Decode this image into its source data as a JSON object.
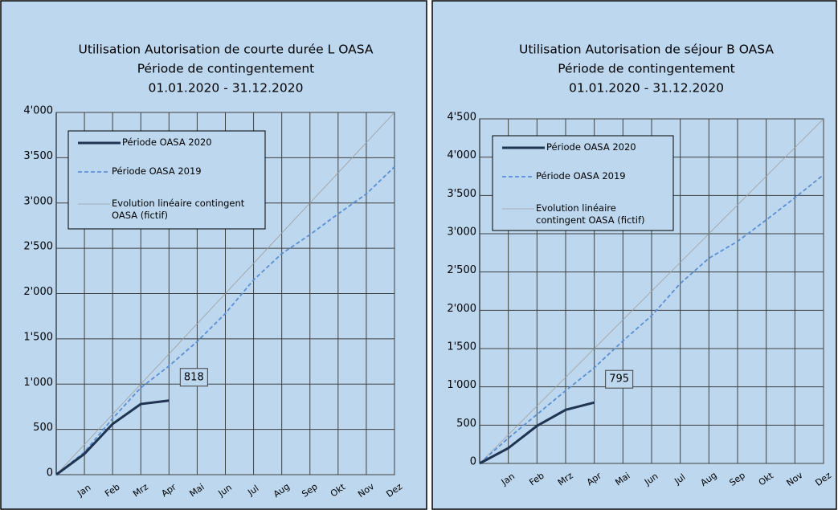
{
  "chart_data": [
    {
      "type": "line",
      "title": [
        "Utilisation Autorisation de courte durée L OASA",
        "Période de contingentement",
        "01.01.2020 - 31.12.2020"
      ],
      "categories": [
        null,
        "Jan",
        "Feb",
        "Mrz",
        "Apr",
        "Mai",
        "Jun",
        "Jul",
        "Aug",
        "Sep",
        "Okt",
        "Nov",
        "Dez"
      ],
      "ylim": [
        0,
        4000
      ],
      "yticks": [
        0,
        500,
        {
          "value": 1000,
          "label": "1'000"
        },
        {
          "value": 1500,
          "label": "1'500"
        },
        {
          "value": 2000,
          "label": "2'000"
        },
        {
          "value": 2500,
          "label": "2'500"
        },
        {
          "value": 3000,
          "label": "3'000"
        },
        {
          "value": 3500,
          "label": "3'500"
        },
        {
          "value": 4000,
          "label": "4'000"
        }
      ],
      "grid": true,
      "series": [
        {
          "name": "Période OASA 2020",
          "color": "#1f3450",
          "values": [
            0,
            230,
            560,
            780,
            818,
            null,
            null,
            null,
            null,
            null,
            null,
            null,
            null
          ]
        },
        {
          "name": "Période OASA 2019",
          "color": "#5b8fd4",
          "values": [
            0,
            250,
            620,
            960,
            1200,
            1470,
            1780,
            2150,
            2440,
            2650,
            2880,
            3100,
            3400
          ]
        },
        {
          "name": "Evolution linéaire contingent OASA (fictif)",
          "color": "#a0a0a0",
          "values": [
            0,
            333,
            667,
            1000,
            1333,
            1667,
            2000,
            2333,
            2667,
            3000,
            3333,
            3667,
            4000
          ]
        }
      ],
      "annotation": 818
    },
    {
      "type": "line",
      "title": [
        "Utilisation Autorisation de séjour B OASA",
        "Période de contingentement",
        "01.01.2020 - 31.12.2020"
      ],
      "categories": [
        null,
        "Jan",
        "Feb",
        "Mrz",
        "Apr",
        "Mai",
        "Jun",
        "Jul",
        "Aug",
        "Sep",
        "Okt",
        "Nov",
        "Dez"
      ],
      "ylim": [
        0,
        4500
      ],
      "yticks": [
        0,
        500,
        {
          "value": 1000,
          "label": "1'000"
        },
        {
          "value": 1500,
          "label": "1'500"
        },
        {
          "value": 2000,
          "label": "2'000"
        },
        {
          "value": 2500,
          "label": "2'500"
        },
        {
          "value": 3000,
          "label": "3'000"
        },
        {
          "value": 3500,
          "label": "3'500"
        },
        {
          "value": 4000,
          "label": "4'000"
        },
        {
          "value": 4500,
          "label": "4'500"
        }
      ],
      "grid": true,
      "series": [
        {
          "name": "Période OASA 2020",
          "color": "#1f3450",
          "values": [
            0,
            200,
            490,
            700,
            795,
            null,
            null,
            null,
            null,
            null,
            null,
            null,
            null
          ]
        },
        {
          "name": "Période OASA 2019",
          "color": "#5b8fd4",
          "values": [
            0,
            330,
            640,
            950,
            1250,
            1600,
            1930,
            2350,
            2680,
            2900,
            3180,
            3470,
            3770
          ]
        },
        {
          "name": "Evolution linéaire contingent OASA (fictif)",
          "color": "#a0a0a0",
          "values": [
            0,
            375,
            750,
            1125,
            1500,
            1875,
            2250,
            2625,
            3000,
            3375,
            3750,
            4125,
            4500
          ]
        }
      ],
      "annotation": 795
    }
  ]
}
